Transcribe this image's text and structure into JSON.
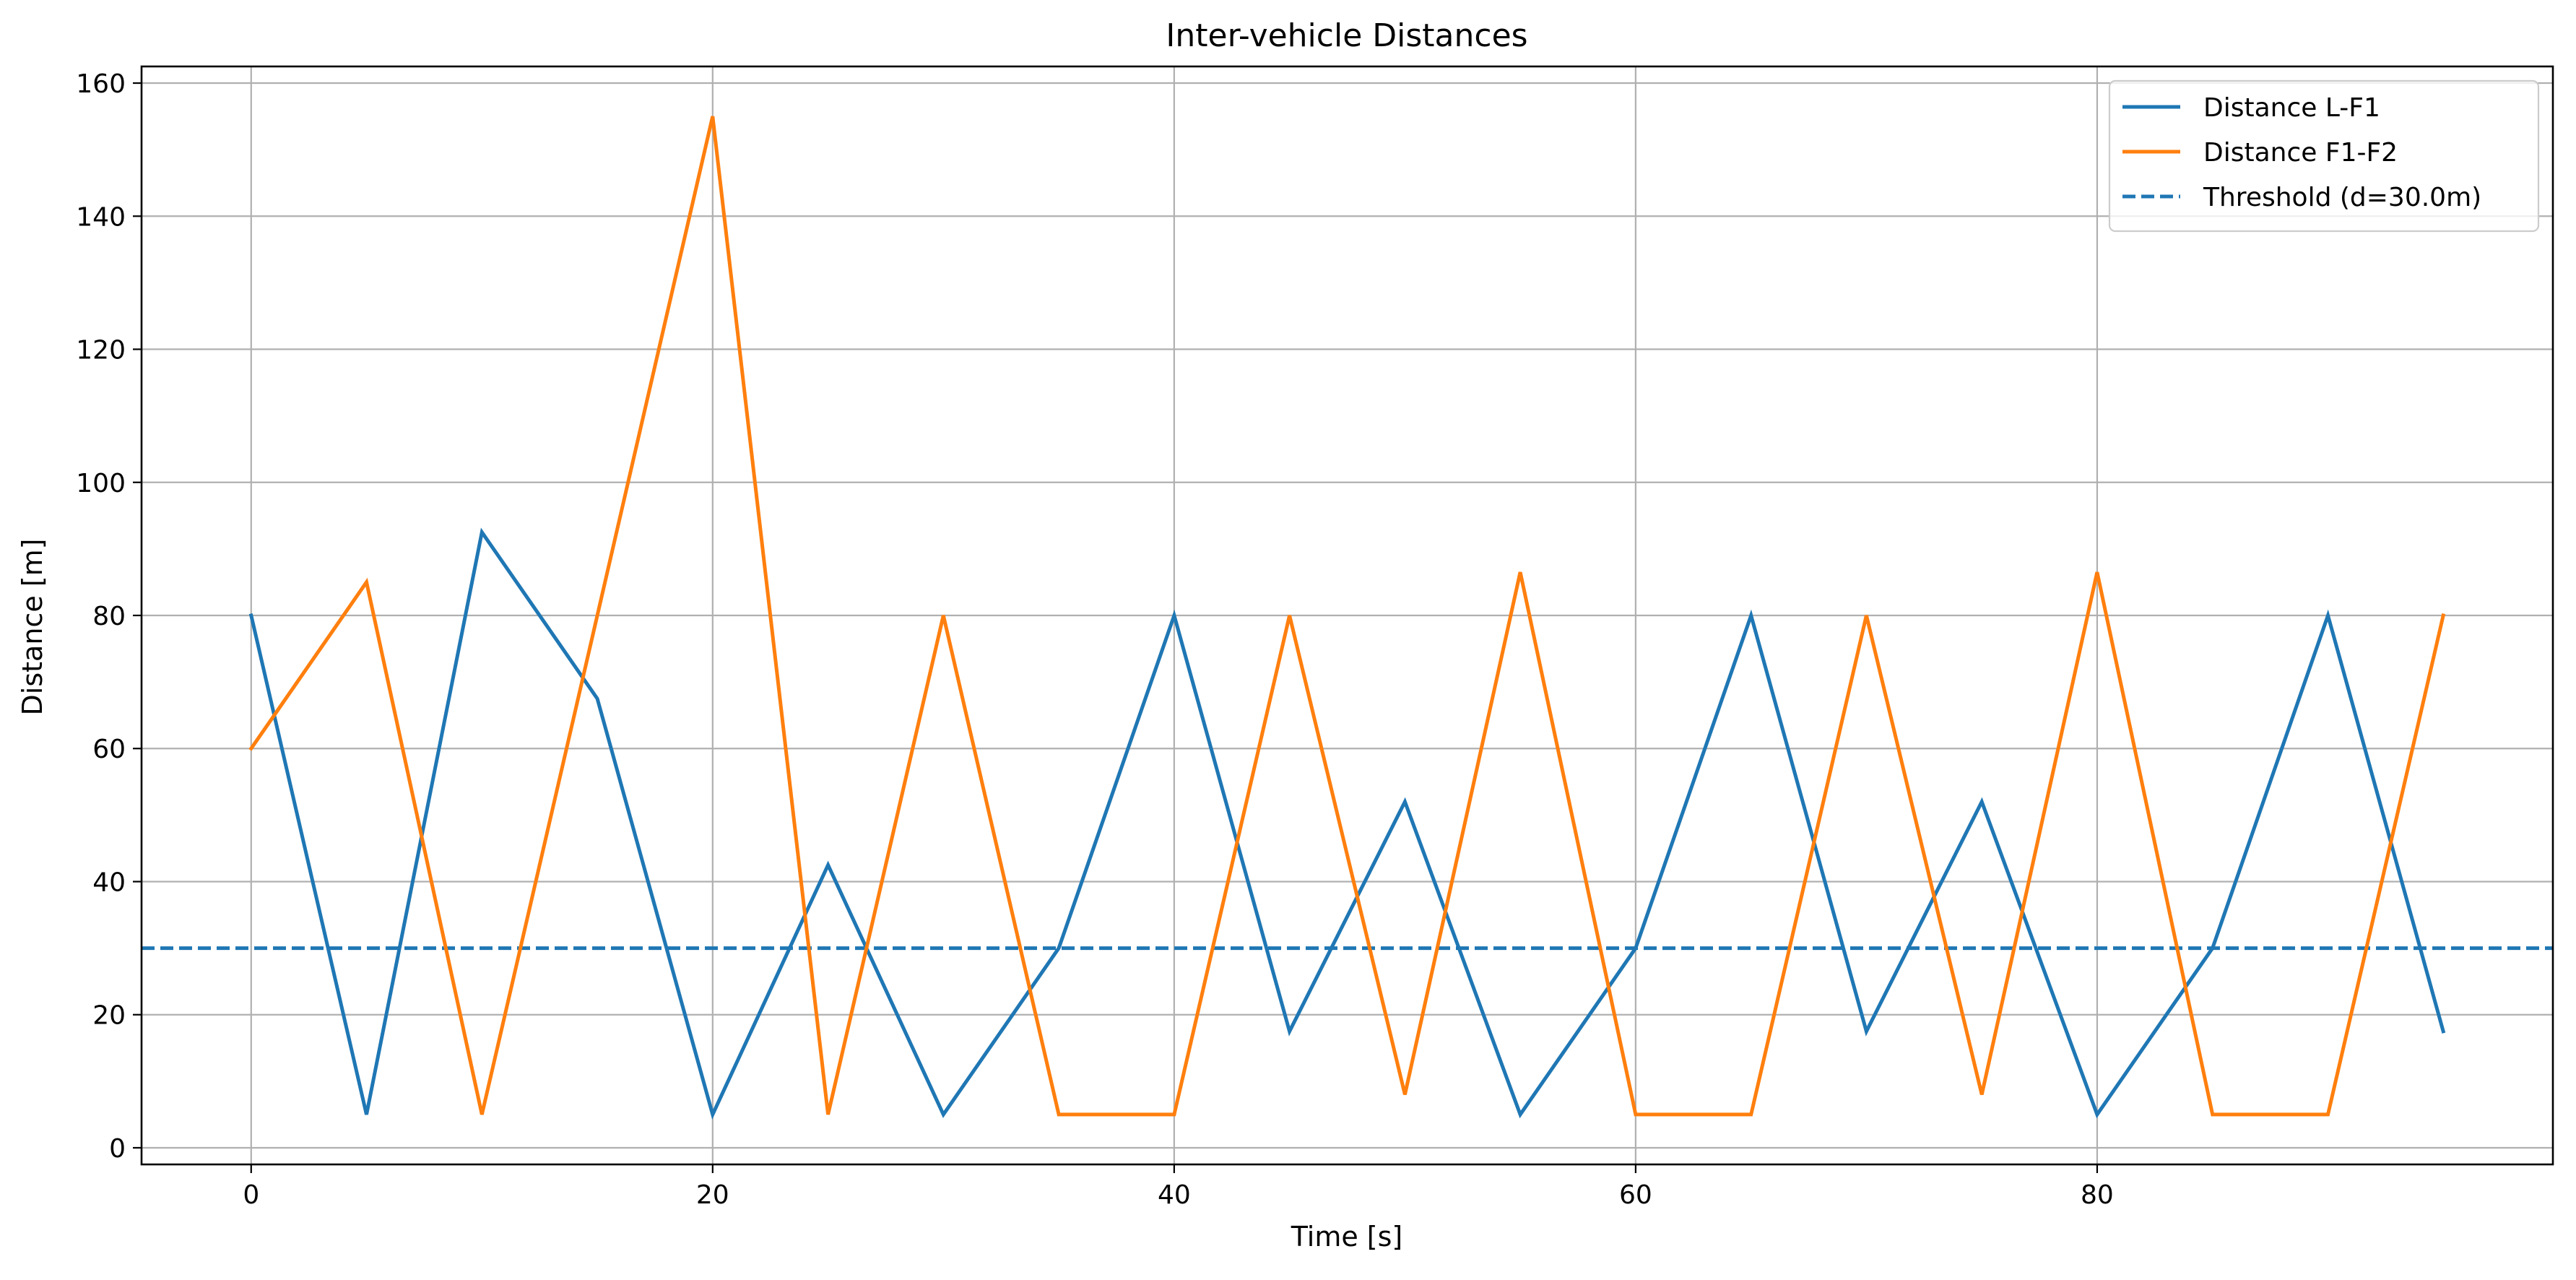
{
  "chart_data": {
    "type": "line",
    "title": "Inter-vehicle Distances",
    "xlabel": "Time [s]",
    "ylabel": "Distance [m]",
    "xlim": [
      -4.75,
      99.75
    ],
    "ylim": [
      -2.5,
      162.5
    ],
    "xticks": [
      0,
      20,
      40,
      60,
      80
    ],
    "yticks": [
      0,
      20,
      40,
      60,
      80,
      100,
      120,
      140,
      160
    ],
    "grid": true,
    "legend_position": "top-right",
    "x": [
      0,
      5,
      10,
      15,
      20,
      25,
      30,
      35,
      40,
      45,
      50,
      55,
      60,
      65,
      70,
      75,
      80,
      85,
      90,
      95
    ],
    "series": [
      {
        "name": "Distance L-F1",
        "color": "#1f77b4",
        "style": "solid",
        "values": [
          80,
          5,
          92.5,
          67.5,
          5,
          42.5,
          5,
          30,
          80,
          17.5,
          52,
          5,
          30,
          80,
          17.5,
          52,
          5,
          30,
          80,
          17.5
        ]
      },
      {
        "name": "Distance F1-F2",
        "color": "#ff7f0e",
        "style": "solid",
        "values": [
          60,
          85,
          5,
          80,
          155,
          5,
          80,
          5,
          5,
          80,
          8,
          86.5,
          5,
          5,
          80,
          8,
          86.5,
          5,
          5,
          80
        ]
      }
    ],
    "threshold": {
      "name": "Threshold (d=30.0m)",
      "value": 30,
      "color": "#1f77b4",
      "style": "dashed"
    }
  }
}
